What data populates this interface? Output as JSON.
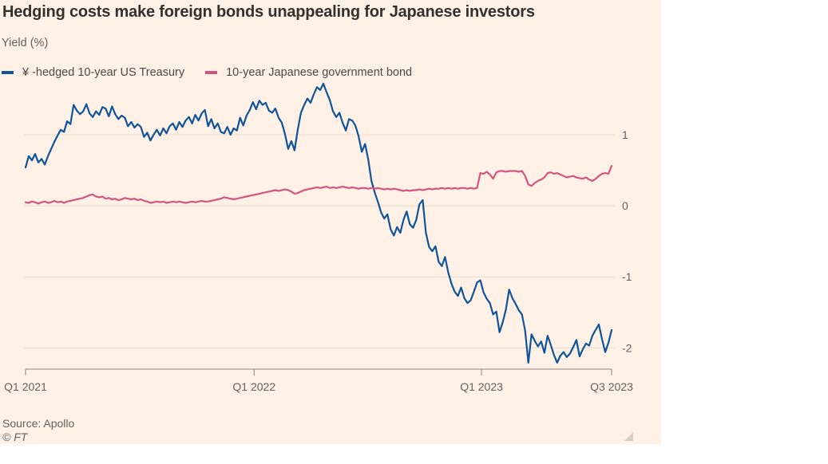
{
  "title": "Hedging costs make foreign bonds unappealing for Japanese investors",
  "subtitle": "Yield (%)",
  "source": "Source: Apollo",
  "copyright": "© FT",
  "colors": {
    "card_background": "#FFF1E5",
    "page_background": "#ffffff",
    "title_text": "#33302e",
    "muted_text": "#66605c",
    "gridline": "#e8daca",
    "axis": "#8f8779",
    "resize_handle": "#d9cec2"
  },
  "chart_data": {
    "type": "line",
    "title": "Hedging costs make foreign bonds unappealing for Japanese investors",
    "ylabel": "Yield (%)",
    "legend_position": "top-left",
    "grid": "horizontal",
    "x_axis": {
      "ticks": [
        {
          "label": "Q1 2021",
          "pos": 0
        },
        {
          "label": "Q1 2022",
          "pos": 0.39
        },
        {
          "label": "Q1 2023",
          "pos": 0.778
        },
        {
          "label": "Q3 2023",
          "pos": 1
        }
      ]
    },
    "y_axis": {
      "ticks": [
        1,
        0,
        -1,
        -2
      ],
      "range": [
        -2.3,
        1.73
      ],
      "side": "right"
    },
    "series": [
      {
        "name": "¥ -hedged 10-year US Treasury",
        "color": "#0f5499",
        "values": [
          0.54,
          0.7,
          0.64,
          0.73,
          0.61,
          0.66,
          0.58,
          0.7,
          0.8,
          0.9,
          0.99,
          1.07,
          1.04,
          1.19,
          1.15,
          1.42,
          1.34,
          1.29,
          1.33,
          1.43,
          1.3,
          1.25,
          1.33,
          1.28,
          1.39,
          1.37,
          1.26,
          1.4,
          1.29,
          1.22,
          1.27,
          1.24,
          1.12,
          1.18,
          1.1,
          1.15,
          1.11,
          0.97,
          1.03,
          0.92,
          1.0,
          1.07,
          0.99,
          1.09,
          1.02,
          1.12,
          1.16,
          1.07,
          1.18,
          1.11,
          1.2,
          1.25,
          1.16,
          1.28,
          1.2,
          1.3,
          1.35,
          1.12,
          1.22,
          1.09,
          1.16,
          1.04,
          1.02,
          1.11,
          1.0,
          1.09,
          1.06,
          1.24,
          1.13,
          1.27,
          1.35,
          1.46,
          1.36,
          1.48,
          1.42,
          1.45,
          1.34,
          1.31,
          1.37,
          1.24,
          1.17,
          1.01,
          0.8,
          0.91,
          0.78,
          1.07,
          1.31,
          1.42,
          1.51,
          1.45,
          1.57,
          1.67,
          1.63,
          1.72,
          1.6,
          1.49,
          1.33,
          1.25,
          1.31,
          1.17,
          1.06,
          1.22,
          1.2,
          1.13,
          0.98,
          0.76,
          0.87,
          0.65,
          0.35,
          0.19,
          0.06,
          -0.09,
          -0.18,
          -0.12,
          -0.33,
          -0.42,
          -0.3,
          -0.38,
          -0.2,
          -0.08,
          -0.26,
          -0.31,
          -0.2,
          0.02,
          0.08,
          -0.38,
          -0.58,
          -0.64,
          -0.57,
          -0.79,
          -0.85,
          -0.72,
          -0.94,
          -1.1,
          -1.21,
          -1.27,
          -1.15,
          -1.3,
          -1.37,
          -1.33,
          -1.21,
          -1.08,
          -1.05,
          -1.22,
          -1.31,
          -1.37,
          -1.53,
          -1.49,
          -1.78,
          -1.64,
          -1.46,
          -1.18,
          -1.3,
          -1.38,
          -1.47,
          -1.53,
          -1.76,
          -2.21,
          -1.81,
          -1.9,
          -1.98,
          -1.91,
          -2.07,
          -1.83,
          -1.96,
          -2.1,
          -2.21,
          -2.11,
          -2.06,
          -2.13,
          -2.08,
          -1.99,
          -1.89,
          -2.12,
          -2.02,
          -1.94,
          -1.97,
          -1.83,
          -1.75,
          -1.67,
          -1.88,
          -2.06,
          -1.93,
          -1.75
        ]
      },
      {
        "name": "10-year Japanese government bond",
        "color": "#d4557e",
        "values": [
          0.05,
          0.04,
          0.06,
          0.05,
          0.03,
          0.05,
          0.06,
          0.04,
          0.05,
          0.07,
          0.05,
          0.06,
          0.04,
          0.06,
          0.07,
          0.08,
          0.09,
          0.1,
          0.11,
          0.13,
          0.15,
          0.16,
          0.13,
          0.12,
          0.13,
          0.1,
          0.11,
          0.09,
          0.1,
          0.08,
          0.09,
          0.11,
          0.1,
          0.09,
          0.1,
          0.08,
          0.09,
          0.07,
          0.06,
          0.04,
          0.05,
          0.06,
          0.05,
          0.06,
          0.04,
          0.05,
          0.06,
          0.05,
          0.06,
          0.05,
          0.04,
          0.05,
          0.06,
          0.05,
          0.06,
          0.07,
          0.06,
          0.06,
          0.07,
          0.08,
          0.09,
          0.1,
          0.12,
          0.11,
          0.1,
          0.09,
          0.1,
          0.11,
          0.12,
          0.13,
          0.14,
          0.15,
          0.16,
          0.17,
          0.18,
          0.19,
          0.2,
          0.21,
          0.22,
          0.21,
          0.22,
          0.23,
          0.22,
          0.2,
          0.17,
          0.18,
          0.2,
          0.22,
          0.23,
          0.24,
          0.25,
          0.26,
          0.25,
          0.26,
          0.27,
          0.25,
          0.26,
          0.25,
          0.26,
          0.27,
          0.26,
          0.25,
          0.26,
          0.25,
          0.24,
          0.25,
          0.25,
          0.24,
          0.25,
          0.24,
          0.25,
          0.24,
          0.23,
          0.24,
          0.23,
          0.24,
          0.23,
          0.22,
          0.21,
          0.22,
          0.21,
          0.22,
          0.22,
          0.23,
          0.22,
          0.23,
          0.24,
          0.23,
          0.24,
          0.24,
          0.25,
          0.24,
          0.25,
          0.24,
          0.25,
          0.24,
          0.25,
          0.25,
          0.24,
          0.25,
          0.24,
          0.25,
          0.46,
          0.45,
          0.48,
          0.44,
          0.38,
          0.47,
          0.49,
          0.49,
          0.48,
          0.49,
          0.49,
          0.49,
          0.48,
          0.49,
          0.42,
          0.3,
          0.28,
          0.32,
          0.35,
          0.37,
          0.4,
          0.46,
          0.47,
          0.45,
          0.46,
          0.44,
          0.42,
          0.4,
          0.41,
          0.42,
          0.4,
          0.39,
          0.38,
          0.4,
          0.37,
          0.35,
          0.38,
          0.42,
          0.45,
          0.46,
          0.45,
          0.56
        ]
      }
    ]
  }
}
